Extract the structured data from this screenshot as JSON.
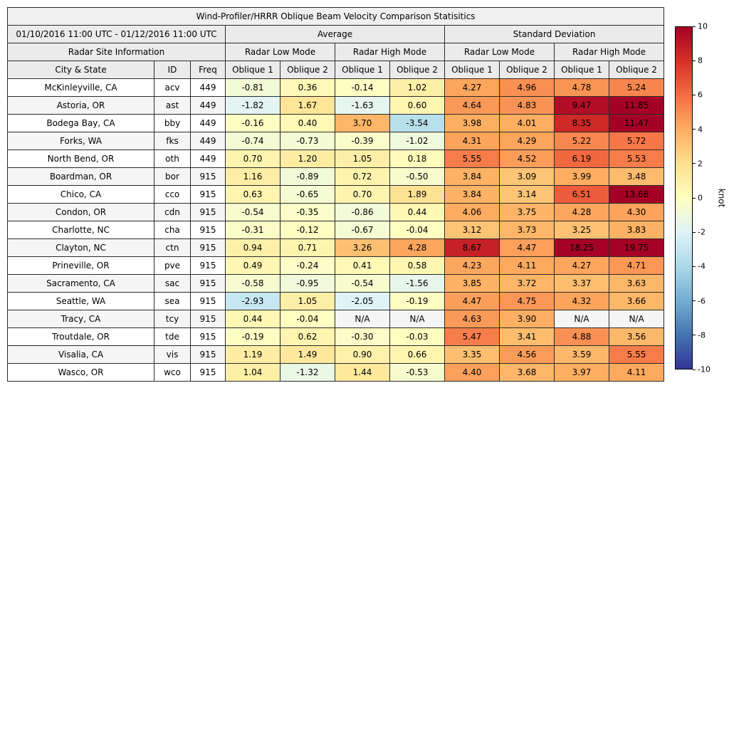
{
  "chart_data": {
    "type": "table",
    "title": "Wind-Profiler/HRRR Oblique Beam Velocity Comparison Statisitics",
    "date_range": "01/10/2016 11:00 UTC - 01/12/2016 11:00 UTC",
    "group_headers": [
      "Average",
      "Standard Deviation"
    ],
    "section_headers": [
      "Radar Site Information",
      "Radar Low Mode",
      "Radar High Mode",
      "Radar Low Mode",
      "Radar High Mode"
    ],
    "column_headers": [
      "City & State",
      "ID",
      "Freq",
      "Oblique 1",
      "Oblique 2",
      "Oblique 1",
      "Oblique 2",
      "Oblique 1",
      "Oblique 2",
      "Oblique 1",
      "Oblique 2"
    ],
    "na_text": "N/A",
    "rows": [
      {
        "city": "McKinleyville, CA",
        "id": "acv",
        "freq": "449",
        "values": [
          -0.81,
          0.36,
          -0.14,
          1.02,
          4.27,
          4.96,
          4.78,
          5.24
        ]
      },
      {
        "city": "Astoria, OR",
        "id": "ast",
        "freq": "449",
        "values": [
          -1.82,
          1.67,
          -1.63,
          0.6,
          4.64,
          4.83,
          9.47,
          11.85
        ]
      },
      {
        "city": "Bodega Bay, CA",
        "id": "bby",
        "freq": "449",
        "values": [
          -0.16,
          0.4,
          3.7,
          -3.54,
          3.98,
          4.01,
          8.35,
          11.47
        ]
      },
      {
        "city": "Forks, WA",
        "id": "fks",
        "freq": "449",
        "values": [
          -0.74,
          -0.73,
          -0.39,
          -1.02,
          4.31,
          4.29,
          5.22,
          5.72
        ]
      },
      {
        "city": "North Bend, OR",
        "id": "oth",
        "freq": "449",
        "values": [
          0.7,
          1.2,
          1.05,
          0.18,
          5.55,
          4.52,
          6.19,
          5.53
        ]
      },
      {
        "city": "Boardman, OR",
        "id": "bor",
        "freq": "915",
        "values": [
          1.16,
          -0.89,
          0.72,
          -0.5,
          3.84,
          3.09,
          3.99,
          3.48
        ]
      },
      {
        "city": "Chico, CA",
        "id": "cco",
        "freq": "915",
        "values": [
          0.63,
          -0.65,
          0.7,
          1.89,
          3.84,
          3.14,
          6.51,
          13.68
        ]
      },
      {
        "city": "Condon, OR",
        "id": "cdn",
        "freq": "915",
        "values": [
          -0.54,
          -0.35,
          -0.86,
          0.44,
          4.06,
          3.75,
          4.28,
          4.3
        ]
      },
      {
        "city": "Charlotte, NC",
        "id": "cha",
        "freq": "915",
        "values": [
          -0.31,
          -0.12,
          -0.67,
          -0.04,
          3.12,
          3.73,
          3.25,
          3.83
        ]
      },
      {
        "city": "Clayton, NC",
        "id": "ctn",
        "freq": "915",
        "values": [
          0.94,
          0.71,
          3.26,
          4.28,
          8.67,
          4.47,
          18.25,
          19.75
        ]
      },
      {
        "city": "Prineville, OR",
        "id": "pve",
        "freq": "915",
        "values": [
          0.49,
          -0.24,
          0.41,
          0.58,
          4.23,
          4.11,
          4.27,
          4.71
        ]
      },
      {
        "city": "Sacramento, CA",
        "id": "sac",
        "freq": "915",
        "values": [
          -0.58,
          -0.95,
          -0.54,
          -1.56,
          3.85,
          3.72,
          3.37,
          3.63
        ]
      },
      {
        "city": "Seattle, WA",
        "id": "sea",
        "freq": "915",
        "values": [
          -2.93,
          1.05,
          -2.05,
          -0.19,
          4.47,
          4.75,
          4.32,
          3.66
        ]
      },
      {
        "city": "Tracy, CA",
        "id": "tcy",
        "freq": "915",
        "values": [
          0.44,
          -0.04,
          "N/A",
          "N/A",
          4.63,
          3.9,
          "N/A",
          "N/A"
        ]
      },
      {
        "city": "Troutdale, OR",
        "id": "tde",
        "freq": "915",
        "values": [
          -0.19,
          0.62,
          -0.3,
          -0.03,
          5.47,
          3.41,
          4.88,
          3.56
        ]
      },
      {
        "city": "Visalia, CA",
        "id": "vis",
        "freq": "915",
        "values": [
          1.19,
          1.49,
          0.9,
          0.66,
          3.35,
          4.56,
          3.59,
          5.55
        ]
      },
      {
        "city": "Wasco, OR",
        "id": "wco",
        "freq": "915",
        "values": [
          1.04,
          -1.32,
          1.44,
          -0.53,
          4.4,
          3.68,
          3.97,
          4.11
        ]
      }
    ],
    "colorbar": {
      "label": "knot",
      "min": -10,
      "max": 10,
      "ticks": [
        10,
        8,
        6,
        4,
        2,
        0,
        -2,
        -4,
        -6,
        -8,
        -10
      ],
      "colormap": [
        "#313695",
        "#4575b1",
        "#74add1",
        "#abd9e9",
        "#e0f3f8",
        "#ffffbf",
        "#fee090",
        "#fdae61",
        "#f46d43",
        "#d73027",
        "#a50026"
      ]
    },
    "row_stripe_colors": [
      "#ffffff",
      "#f5f5f5"
    ]
  }
}
